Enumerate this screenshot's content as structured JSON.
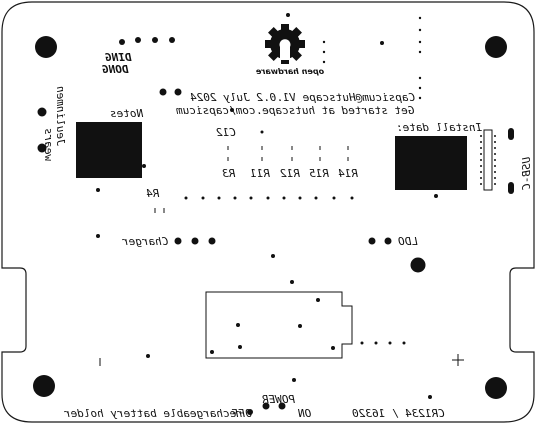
{
  "silkscreen": {
    "ding": "DING",
    "dong": "DONG",
    "open_hardware": "open hardware",
    "title_line": "Capsicum@Hutscape V1.0.2 July 2024",
    "url_line": "Get started at hutscape.com/capsicum",
    "notes": "Notes",
    "install_date": "Install date:",
    "jeulinmen_wears": [
      "Jeulinmen",
      "wears"
    ],
    "usb_c": "USB-C",
    "c12": "C12",
    "r3": "R3",
    "r11": "R11",
    "r12": "R12",
    "r15": "R15",
    "r14": "R14",
    "r4": "R4",
    "charger": "Charger",
    "ldo": "LDO",
    "power": "POWER",
    "on": "ON",
    "off": "OFF",
    "battery_holder": "rechargeable battery holder",
    "cr_label": "CR1234 / 16320",
    "plus": "+",
    "minus": "|"
  },
  "colors": {
    "board_outline": "#1a1a1a",
    "pad": "#111111",
    "background": "#ffffff"
  }
}
